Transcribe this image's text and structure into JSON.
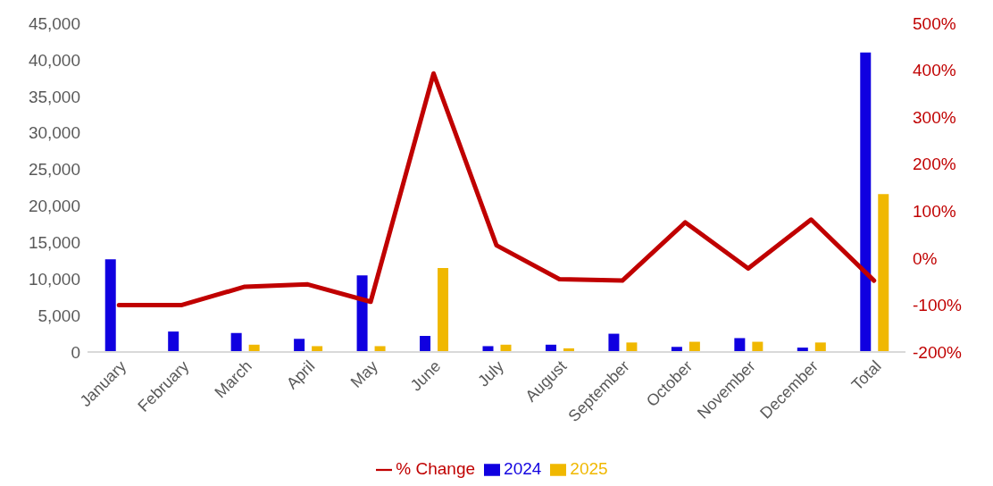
{
  "chart_data": {
    "type": "bar",
    "categories": [
      "January",
      "February",
      "March",
      "April",
      "May",
      "June",
      "July",
      "August",
      "September",
      "October",
      "November",
      "December",
      "Total"
    ],
    "series": [
      {
        "name": "2024",
        "color": "#1000e0",
        "values": [
          12700,
          2800,
          2600,
          1800,
          10500,
          2200,
          800,
          1000,
          2500,
          700,
          1900,
          600,
          41000
        ]
      },
      {
        "name": "2025",
        "color": "#f0b800",
        "values": [
          null,
          null,
          1000,
          800,
          800,
          11500,
          1000,
          500,
          1300,
          1400,
          1400,
          1300,
          21600
        ]
      },
      {
        "name": "% Change",
        "type": "line",
        "axis": "y2",
        "color": "#c00000",
        "values": [
          -100,
          -100,
          -61,
          -56,
          -93,
          393,
          27,
          -45,
          -48,
          76,
          -22,
          82,
          -48
        ]
      }
    ],
    "ylim": [
      0,
      45000
    ],
    "yticks": [
      0,
      {
        "value": 5000,
        "label": "5,000"
      },
      {
        "value": 10000,
        "label": "10,000"
      },
      {
        "value": 15000,
        "label": "15,000"
      },
      {
        "value": 20000,
        "label": "20,000"
      },
      {
        "value": 25000,
        "label": "25,000"
      },
      {
        "value": 30000,
        "label": "30,000"
      },
      {
        "value": 35000,
        "label": "35,000"
      },
      {
        "value": 40000,
        "label": "40,000"
      },
      {
        "value": 45000,
        "label": "45,000"
      }
    ],
    "y2lim": [
      -200,
      500
    ],
    "y2ticks": [
      {
        "value": -200,
        "label": "-200%"
      },
      {
        "value": -100,
        "label": "-100%"
      },
      {
        "value": 0,
        "label": "0%"
      },
      {
        "value": 100,
        "label": "100%"
      },
      {
        "value": 200,
        "label": "200%"
      },
      {
        "value": 300,
        "label": "300%"
      },
      {
        "value": 400,
        "label": "400%"
      },
      {
        "value": 500,
        "label": "500%"
      }
    ],
    "grid": false,
    "legend": "bottom",
    "marker": "none",
    "line_style": "solid"
  }
}
